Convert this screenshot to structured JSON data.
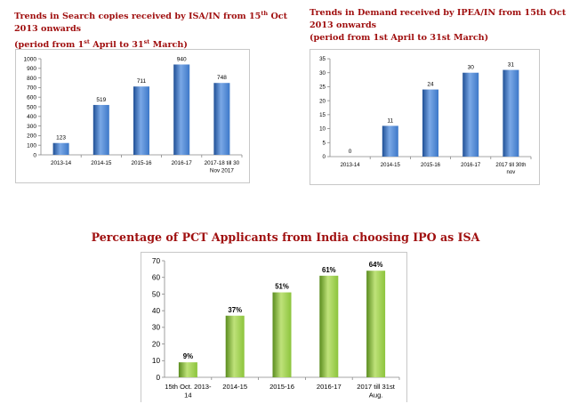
{
  "titles": {
    "search": {
      "main": "Trends in Search copies received by ISA/IN from 15",
      "sup": "th",
      "tail": " Oct 2013 onwards",
      "line2a": "(period from 1",
      "line2sup": "st",
      "line2b": " April to 31",
      "line2sup2": "st",
      "line2c": " March)"
    },
    "demand": {
      "line1": "Trends in Demand received by IPEA/IN from 15th Oct 2013 onwards",
      "line2": "(period from 1st April to 31st March)"
    },
    "pct": "Percentage of PCT Applicants from India choosing IPO as ISA"
  },
  "colors": {
    "blue_bar": "#3d78c8",
    "green_bar": "#8cc43c",
    "title_red": "#a01010"
  },
  "chart_data": [
    {
      "type": "bar",
      "categories": [
        [
          "2013-14"
        ],
        [
          "2014-15"
        ],
        [
          "2015-16"
        ],
        [
          "2016-17"
        ],
        [
          "2017-18 till 30",
          "Nov 2017"
        ]
      ],
      "values": [
        123,
        519,
        711,
        940,
        748
      ],
      "labels": [
        "123",
        "519",
        "711",
        "940",
        "748"
      ],
      "ylim": [
        0,
        1000
      ],
      "ystep": 100,
      "grid": false
    },
    {
      "type": "bar",
      "categories": [
        [
          "2013-14"
        ],
        [
          "2014-15"
        ],
        [
          "2015-16"
        ],
        [
          "2016-17"
        ],
        [
          "2017 till 30th",
          "nov"
        ]
      ],
      "values": [
        0,
        11,
        24,
        30,
        31
      ],
      "labels": [
        "0",
        "11",
        "24",
        "30",
        "31"
      ],
      "ylim": [
        0,
        35
      ],
      "ystep": 5,
      "grid": false
    },
    {
      "type": "bar",
      "categories": [
        [
          "15th Oct. 2013-",
          "14"
        ],
        [
          "2014-15"
        ],
        [
          "2015-16"
        ],
        [
          "2016-17"
        ],
        [
          "2017 till 31st",
          "Aug."
        ]
      ],
      "values": [
        9,
        37,
        51,
        61,
        64
      ],
      "labels": [
        "9%",
        "37%",
        "51%",
        "61%",
        "64%"
      ],
      "ylim": [
        0,
        70
      ],
      "ystep": 10,
      "grid": false
    }
  ]
}
